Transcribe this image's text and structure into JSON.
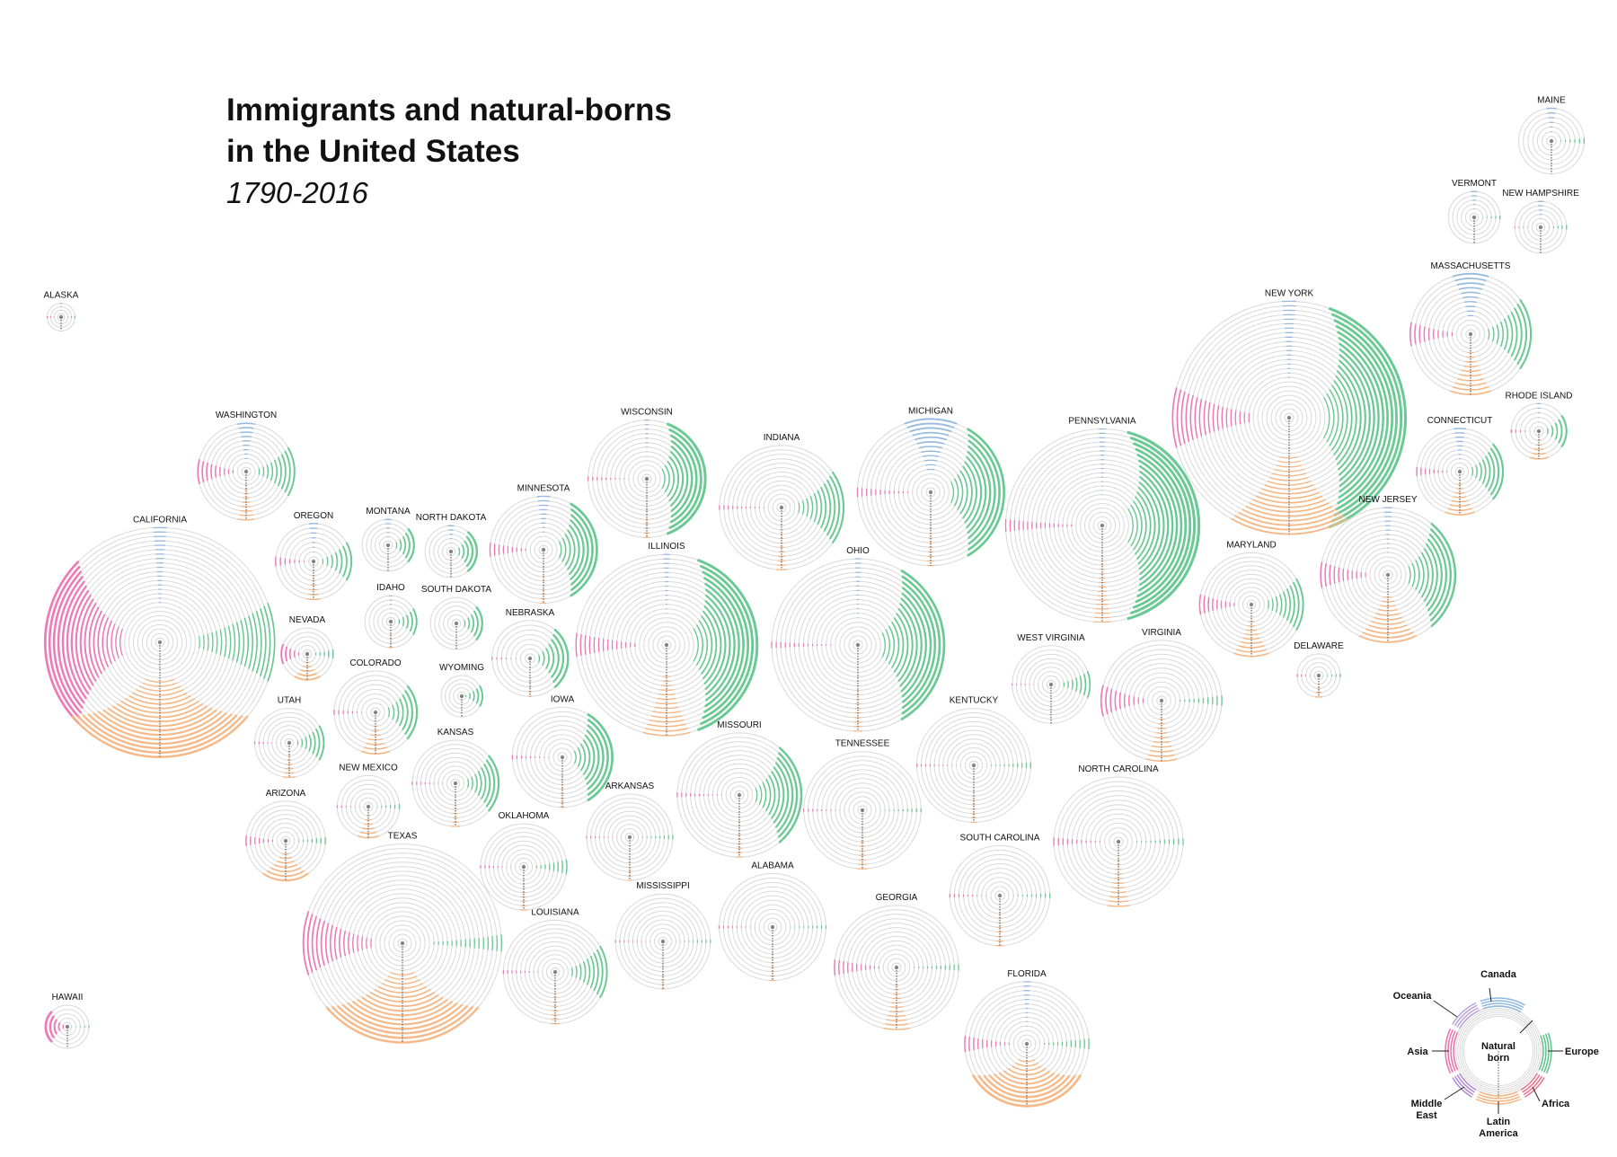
{
  "title": {
    "line1": "Immigrants and natural-borns",
    "line2": "in the United States",
    "years": "1790-2016"
  },
  "colors": {
    "natural_born": "#d9d9d9",
    "europe": "#5cc58a",
    "canada": "#8fb6de",
    "asia": "#ec6fb0",
    "latin_america": "#f7b37c",
    "africa": "#e8748c",
    "middle_east": "#b48ad0",
    "oceania": "#b9a0d8"
  },
  "chart_data": {
    "type": "radial-ring-map",
    "period": "1790-2016",
    "categories": [
      "Natural born",
      "Canada",
      "Europe",
      "Africa",
      "Latin America",
      "Middle East",
      "Asia",
      "Oceania"
    ],
    "legend": {
      "center_label": "Natural born",
      "labels": [
        "Canada",
        "Europe",
        "Africa",
        "Latin America",
        "Middle East",
        "Asia",
        "Oceania"
      ]
    },
    "states": [
      {
        "name": "MAINE",
        "size": 0.38,
        "europe": 0.05,
        "canada": 0.12,
        "asia": 0.0,
        "latam": 0.0
      },
      {
        "name": "VERMONT",
        "size": 0.3,
        "europe": 0.04,
        "canada": 0.1,
        "asia": 0.0,
        "latam": 0.0
      },
      {
        "name": "NEW HAMPSHIRE",
        "size": 0.3,
        "europe": 0.05,
        "canada": 0.1,
        "asia": 0.02,
        "latam": 0.0
      },
      {
        "name": "MASSACHUSETTS",
        "size": 0.7,
        "europe": 0.35,
        "canada": 0.25,
        "asia": 0.15,
        "latam": 0.2
      },
      {
        "name": "RHODE ISLAND",
        "size": 0.32,
        "europe": 0.35,
        "canada": 0.05,
        "asia": 0.05,
        "latam": 0.2
      },
      {
        "name": "CONNECTICUT",
        "size": 0.5,
        "europe": 0.4,
        "canada": 0.12,
        "asia": 0.08,
        "latam": 0.2
      },
      {
        "name": "NEW YORK",
        "size": 1.35,
        "europe": 0.7,
        "canada": 0.05,
        "asia": 0.2,
        "latam": 0.3
      },
      {
        "name": "NEW JERSEY",
        "size": 0.78,
        "europe": 0.5,
        "canada": 0.05,
        "asia": 0.15,
        "latam": 0.25
      },
      {
        "name": "PENNSYLVANIA",
        "size": 1.12,
        "europe": 0.75,
        "canada": 0.03,
        "asia": 0.05,
        "latam": 0.05
      },
      {
        "name": "DELAWARE",
        "size": 0.25,
        "europe": 0.05,
        "canada": 0.0,
        "asia": 0.05,
        "latam": 0.1
      },
      {
        "name": "MARYLAND",
        "size": 0.6,
        "europe": 0.3,
        "canada": 0.0,
        "asia": 0.15,
        "latam": 0.2
      },
      {
        "name": "VIRGINIA",
        "size": 0.7,
        "europe": 0.05,
        "canada": 0.0,
        "asia": 0.2,
        "latam": 0.15
      },
      {
        "name": "WEST VIRGINIA",
        "size": 0.45,
        "europe": 0.2,
        "canada": 0.0,
        "asia": 0.02,
        "latam": 0.0
      },
      {
        "name": "NORTH CAROLINA",
        "size": 0.75,
        "europe": 0.03,
        "canada": 0.0,
        "asia": 0.05,
        "latam": 0.1
      },
      {
        "name": "SOUTH CAROLINA",
        "size": 0.58,
        "europe": 0.03,
        "canada": 0.0,
        "asia": 0.03,
        "latam": 0.05
      },
      {
        "name": "GEORGIA",
        "size": 0.72,
        "europe": 0.03,
        "canada": 0.0,
        "asia": 0.1,
        "latam": 0.12
      },
      {
        "name": "FLORIDA",
        "size": 0.72,
        "europe": 0.05,
        "canada": 0.05,
        "asia": 0.1,
        "latam": 0.6
      },
      {
        "name": "OHIO",
        "size": 1.0,
        "europe": 0.6,
        "canada": 0.03,
        "asia": 0.03,
        "latam": 0.03
      },
      {
        "name": "MICHIGAN",
        "size": 0.85,
        "europe": 0.6,
        "canada": 0.3,
        "asia": 0.05,
        "latam": 0.03
      },
      {
        "name": "INDIANA",
        "size": 0.72,
        "europe": 0.35,
        "canada": 0.0,
        "asia": 0.03,
        "latam": 0.05
      },
      {
        "name": "KENTUCKY",
        "size": 0.66,
        "europe": 0.03,
        "canada": 0.0,
        "asia": 0.02,
        "latam": 0.03
      },
      {
        "name": "TENNESSEE",
        "size": 0.68,
        "europe": 0.02,
        "canada": 0.0,
        "asia": 0.02,
        "latam": 0.05
      },
      {
        "name": "ALABAMA",
        "size": 0.62,
        "europe": 0.02,
        "canada": 0.0,
        "asia": 0.02,
        "latam": 0.03
      },
      {
        "name": "MISSISSIPPI",
        "size": 0.55,
        "europe": 0.02,
        "canada": 0.0,
        "asia": 0.02,
        "latam": 0.02
      },
      {
        "name": "ILLINOIS",
        "size": 1.05,
        "europe": 0.7,
        "canada": 0.03,
        "asia": 0.1,
        "latam": 0.15
      },
      {
        "name": "WISCONSIN",
        "size": 0.68,
        "europe": 0.7,
        "canada": 0.03,
        "asia": 0.03,
        "latam": 0.03
      },
      {
        "name": "MINNESOTA",
        "size": 0.62,
        "europe": 0.6,
        "canada": 0.1,
        "asia": 0.1,
        "latam": 0.03
      },
      {
        "name": "IOWA",
        "size": 0.58,
        "europe": 0.6,
        "canada": 0.0,
        "asia": 0.03,
        "latam": 0.03
      },
      {
        "name": "MISSOURI",
        "size": 0.72,
        "europe": 0.5,
        "canada": 0.0,
        "asia": 0.03,
        "latam": 0.03
      },
      {
        "name": "ARKANSAS",
        "size": 0.5,
        "europe": 0.03,
        "canada": 0.0,
        "asia": 0.02,
        "latam": 0.03
      },
      {
        "name": "LOUISIANA",
        "size": 0.6,
        "europe": 0.3,
        "canada": 0.0,
        "asia": 0.03,
        "latam": 0.05
      },
      {
        "name": "OKLAHOMA",
        "size": 0.5,
        "europe": 0.1,
        "canada": 0.0,
        "asia": 0.03,
        "latam": 0.05
      },
      {
        "name": "KANSAS",
        "size": 0.5,
        "europe": 0.4,
        "canada": 0.0,
        "asia": 0.03,
        "latam": 0.05
      },
      {
        "name": "NEBRASKA",
        "size": 0.44,
        "europe": 0.5,
        "canada": 0.0,
        "asia": 0.03,
        "latam": 0.03
      },
      {
        "name": "SOUTH DAKOTA",
        "size": 0.3,
        "europe": 0.4,
        "canada": 0.0,
        "asia": 0.0,
        "latam": 0.0
      },
      {
        "name": "NORTH DAKOTA",
        "size": 0.3,
        "europe": 0.5,
        "canada": 0.1,
        "asia": 0.0,
        "latam": 0.0
      },
      {
        "name": "MONTANA",
        "size": 0.3,
        "europe": 0.4,
        "canada": 0.1,
        "asia": 0.0,
        "latam": 0.0
      },
      {
        "name": "WYOMING",
        "size": 0.24,
        "europe": 0.3,
        "canada": 0.0,
        "asia": 0.0,
        "latam": 0.02
      },
      {
        "name": "COLORADO",
        "size": 0.48,
        "europe": 0.4,
        "canada": 0.0,
        "asia": 0.05,
        "latam": 0.2
      },
      {
        "name": "NEW MEXICO",
        "size": 0.36,
        "europe": 0.05,
        "canada": 0.0,
        "asia": 0.03,
        "latam": 0.2
      },
      {
        "name": "IDAHO",
        "size": 0.3,
        "europe": 0.3,
        "canada": 0.05,
        "asia": 0.0,
        "latam": 0.05
      },
      {
        "name": "UTAH",
        "size": 0.4,
        "europe": 0.3,
        "canada": 0.0,
        "asia": 0.03,
        "latam": 0.1
      },
      {
        "name": "ARIZONA",
        "size": 0.46,
        "europe": 0.05,
        "canada": 0.0,
        "asia": 0.1,
        "latam": 0.35
      },
      {
        "name": "NEVADA",
        "size": 0.3,
        "europe": 0.1,
        "canada": 0.0,
        "asia": 0.3,
        "latam": 0.3
      },
      {
        "name": "OREGON",
        "size": 0.44,
        "europe": 0.3,
        "canada": 0.1,
        "asia": 0.1,
        "latam": 0.1
      },
      {
        "name": "WASHINGTON",
        "size": 0.56,
        "europe": 0.3,
        "canada": 0.15,
        "asia": 0.2,
        "latam": 0.1
      },
      {
        "name": "CALIFORNIA",
        "size": 1.33,
        "europe": 0.2,
        "canada": 0.05,
        "asia": 0.6,
        "latam": 0.5
      },
      {
        "name": "TEXAS",
        "size": 1.15,
        "europe": 0.05,
        "canada": 0.0,
        "asia": 0.25,
        "latam": 0.5
      },
      {
        "name": "ALASKA",
        "size": 0.16,
        "europe": 0.05,
        "canada": 0.05,
        "asia": 0.05,
        "latam": 0.0
      },
      {
        "name": "HAWAII",
        "size": 0.25,
        "europe": 0.03,
        "canada": 0.0,
        "asia": 0.6,
        "latam": 0.0
      }
    ]
  }
}
